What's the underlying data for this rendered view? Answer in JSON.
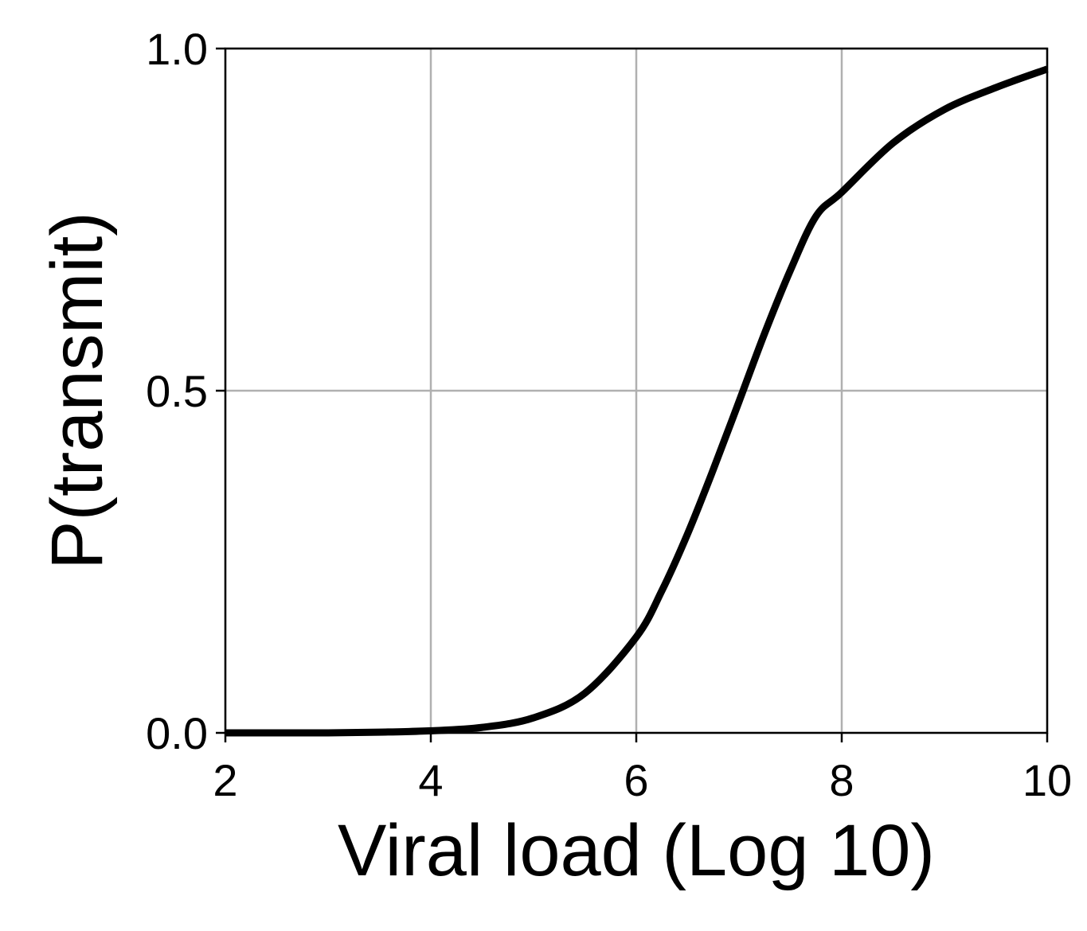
{
  "chart_data": {
    "type": "line",
    "title": "",
    "xlabel": "Viral load (Log 10)",
    "ylabel": "P(transmit)",
    "xlim": [
      2,
      10
    ],
    "ylim": [
      0,
      1
    ],
    "xticks": [
      2,
      4,
      6,
      8,
      10
    ],
    "xtick_labels": [
      "2",
      "4",
      "6",
      "8",
      "10"
    ],
    "yticks": [
      0,
      0.5,
      1
    ],
    "ytick_labels": [
      "0.0",
      "0.5",
      "1.0"
    ],
    "grid": true,
    "legend": "none",
    "series": [
      {
        "color": "#000000",
        "x": [
          2.0,
          2.5,
          3.0,
          3.5,
          4.0,
          4.5,
          5.0,
          5.5,
          6.0,
          6.25,
          6.5,
          6.75,
          7.0,
          7.25,
          7.5,
          7.75,
          8.0,
          8.5,
          9.0,
          9.5,
          10.0
        ],
        "y": [
          0.0,
          0.0,
          0.0,
          0.001,
          0.003,
          0.008,
          0.022,
          0.058,
          0.14,
          0.208,
          0.291,
          0.385,
          0.484,
          0.584,
          0.676,
          0.755,
          0.79,
          0.862,
          0.911,
          0.943,
          0.97
        ]
      }
    ]
  },
  "colors": {
    "line": "#000000",
    "grid": "#b0b0b0",
    "axes": "#000000",
    "background": "#ffffff"
  }
}
